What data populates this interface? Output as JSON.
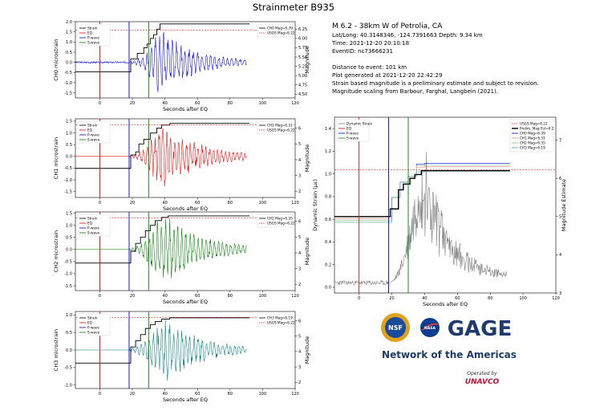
{
  "figure": {
    "title": "Strainmeter B935"
  },
  "info": {
    "line1": "M 6.2 - 38km W of Petrolia, CA",
    "line2": "Lat/Long: 40.3148346, -124.7391663  Depth: 9.34 km",
    "line3": "Time: 2021-12-20 20:10:18",
    "line4": "EventID: nc73666231",
    "line5": "Distance to event: 101 km",
    "line6": "Plot generated at 2021-12-20 22:42:29",
    "line7": "Strain based magnitude is a preliminary estimate and subject to revision.",
    "line8": "Magnitude scaling from Barbour, Farghal, Langbein (2021)."
  },
  "logos": {
    "nsf": "NSF",
    "nasa": "NASA",
    "gage": "GAGE",
    "network": "Network of the Americas",
    "operated": "Operated by",
    "unavco": "UNAVCO"
  },
  "colors": {
    "strain": "#000000",
    "eq": "#ff0000",
    "pwave": "#0000cc",
    "swave": "#008000",
    "usgs": "#d62728",
    "ch0": "#0000ff",
    "ch1": "#ff0000",
    "ch2": "#008000",
    "ch3": "#008080",
    "dynamic": "#808080"
  },
  "chart_data": [
    {
      "id": "ch0",
      "type": "line",
      "xlabel": "Seconds after EQ",
      "ylabel": "CH0 microstrain",
      "y2label": "Magnitude",
      "xlim": [
        -15,
        120
      ],
      "ylim": [
        -1.75,
        2.0
      ],
      "y2lim": [
        4.4,
        6.45
      ],
      "xticks": [
        0,
        20,
        40,
        60,
        80,
        100,
        120
      ],
      "yticks": [
        "2.0",
        "1.5",
        "1.0",
        "0.5",
        "0.0",
        "-0.5",
        "-1.0",
        "-1.5"
      ],
      "y2ticks": [
        "6.25",
        "6.00",
        "5.75",
        "5.50",
        "5.25",
        "5.00",
        "4.75",
        "4.50"
      ],
      "legend_left": [
        "Strain",
        "EQ",
        "P-wave",
        "S-wave"
      ],
      "legend_right": [
        "CH0 Mag=6.39",
        "USGS Mag=6.22"
      ],
      "eq_time": 0,
      "p_time": 18,
      "s_time": 30,
      "usgs_mag": 6.22,
      "final_mag": 6.39,
      "mag_steps": [
        [
          -15,
          5.1
        ],
        [
          18,
          5.1
        ],
        [
          19,
          5.45
        ],
        [
          23,
          5.6
        ],
        [
          27,
          5.75
        ],
        [
          29,
          5.85
        ],
        [
          31,
          6.0
        ],
        [
          33,
          6.1
        ],
        [
          35,
          6.25
        ],
        [
          37,
          6.39
        ],
        [
          92,
          6.39
        ]
      ],
      "signal": {
        "pre_amp": 0.04,
        "max_amp": 1.65,
        "peak": 36,
        "period": 2.6,
        "decay": 22,
        "seed": 3
      }
    },
    {
      "id": "ch1",
      "type": "line",
      "xlabel": "Seconds after EQ",
      "ylabel": "CH1 microstrain",
      "y2label": "Magnitude",
      "xlim": [
        -15,
        120
      ],
      "ylim": [
        -1.75,
        1.6
      ],
      "y2lim": [
        1.6,
        6.6
      ],
      "xticks": [
        0,
        20,
        40,
        60,
        80,
        100,
        120
      ],
      "yticks": [
        "1.5",
        "1.0",
        "0.5",
        "0.0",
        "-0.5",
        "-1.0",
        "-1.5"
      ],
      "y2ticks": [
        "6",
        "5",
        "4",
        "3",
        "2"
      ],
      "legend_left": [
        "Strain",
        "EQ",
        "P-wave",
        "S-wave"
      ],
      "legend_right": [
        "CH1 Mag=6.31",
        "USGS Mag=6.22"
      ],
      "eq_time": 0,
      "p_time": 18,
      "s_time": 30,
      "usgs_mag": 6.22,
      "final_mag": 6.31,
      "mag_steps": [
        [
          -15,
          3.45
        ],
        [
          18,
          3.45
        ],
        [
          19,
          4.3
        ],
        [
          22,
          4.5
        ],
        [
          24,
          5.0
        ],
        [
          27,
          5.3
        ],
        [
          31,
          5.7
        ],
        [
          35,
          6.0
        ],
        [
          38,
          6.2
        ],
        [
          43,
          6.31
        ],
        [
          92,
          6.31
        ]
      ],
      "signal": {
        "pre_amp": 0.0,
        "max_amp": 1.45,
        "peak": 37,
        "period": 2.4,
        "decay": 24,
        "seed": 7
      }
    },
    {
      "id": "ch2",
      "type": "line",
      "xlabel": "Seconds after EQ",
      "ylabel": "CH2 microstrain",
      "y2label": "Magnitude",
      "xlim": [
        -15,
        120
      ],
      "ylim": [
        -1.7,
        1.55
      ],
      "y2lim": [
        1.6,
        6.6
      ],
      "xticks": [
        0,
        20,
        40,
        60,
        80,
        100,
        120
      ],
      "yticks": [
        "1.5",
        "1.0",
        "0.5",
        "0.0",
        "-0.5",
        "-1.0",
        "-1.5"
      ],
      "y2ticks": [
        "6",
        "5",
        "4",
        "3",
        "2"
      ],
      "legend_left": [
        "Strain",
        "EQ",
        "P-wave",
        "S-wave"
      ],
      "legend_right": [
        "CH2 Mag=6.35",
        "USGS Mag=6.22"
      ],
      "eq_time": 0,
      "p_time": 18,
      "s_time": 30,
      "usgs_mag": 6.22,
      "final_mag": 6.35,
      "mag_steps": [
        [
          -15,
          3.35
        ],
        [
          18,
          3.35
        ],
        [
          19,
          4.1
        ],
        [
          22,
          4.6
        ],
        [
          25,
          5.0
        ],
        [
          28,
          5.4
        ],
        [
          31,
          5.75
        ],
        [
          34,
          6.05
        ],
        [
          38,
          6.25
        ],
        [
          42,
          6.35
        ],
        [
          92,
          6.35
        ]
      ],
      "signal": {
        "pre_amp": 0.0,
        "max_amp": 1.5,
        "peak": 37,
        "period": 2.5,
        "decay": 25,
        "seed": 11
      }
    },
    {
      "id": "ch3",
      "type": "line",
      "xlabel": "Seconds after EQ",
      "ylabel": "CH3 microstrain",
      "y2label": "Magnitude",
      "xlim": [
        -15,
        120
      ],
      "ylim": [
        -1.1,
        1.1
      ],
      "y2lim": [
        1.6,
        6.6
      ],
      "xticks": [
        0,
        20,
        40,
        60,
        80,
        100,
        120
      ],
      "yticks": [
        "1.0",
        "0.5",
        "0.0",
        "-0.5",
        "-1.0"
      ],
      "y2ticks": [
        "6",
        "5",
        "4",
        "3",
        "2"
      ],
      "legend_left": [
        "Strain",
        "EQ",
        "P-wave",
        "S-wave"
      ],
      "legend_right": [
        "CH3 Mag=6.19",
        "USGS Mag=6.22"
      ],
      "eq_time": 0,
      "p_time": 18,
      "s_time": 30,
      "usgs_mag": 6.22,
      "final_mag": 6.19,
      "mag_steps": [
        [
          -15,
          3.25
        ],
        [
          18,
          3.25
        ],
        [
          19,
          4.3
        ],
        [
          22,
          4.7
        ],
        [
          25,
          5.1
        ],
        [
          28,
          5.5
        ],
        [
          31,
          5.75
        ],
        [
          34,
          5.95
        ],
        [
          38,
          6.1
        ],
        [
          43,
          6.19
        ],
        [
          92,
          6.19
        ]
      ],
      "signal": {
        "pre_amp": 0.0,
        "max_amp": 0.95,
        "peak": 38,
        "period": 2.5,
        "decay": 23,
        "seed": 17
      }
    },
    {
      "id": "dynamic",
      "type": "line",
      "xlabel": "Seconds after EQ",
      "ylabel": "Dynamic Strain (µε)",
      "y2label": "Magnitude Estimate",
      "xlim": [
        -15,
        120
      ],
      "ylim": [
        -0.05,
        1.5
      ],
      "y2lim": [
        3.0,
        7.6
      ],
      "xticks": [
        0,
        20,
        40,
        60,
        80,
        100,
        120
      ],
      "yticks": [
        "1.4",
        "1.2",
        "1.0",
        "0.8",
        "0.6",
        "0.4",
        "0.2",
        "0.0"
      ],
      "y2ticks": [
        "7",
        "6",
        "5",
        "4",
        "3"
      ],
      "legend_left": [
        "Dynamic Strain",
        "EQ",
        "P-wave",
        "S-wave"
      ],
      "legend_right": [
        "USGS Mag=6.22",
        "Prelim. Mag Est=6.2",
        "CH0 Mag=6.39",
        "CH1 Mag=6.31",
        "CH2 Mag=6.35",
        "CH3 Mag=6.19"
      ],
      "eq_time": 0,
      "p_time": 18,
      "s_time": 30,
      "usgs_mag": 6.22,
      "prelim_mag": 6.2,
      "prelim_steps": [
        [
          -15,
          5.0
        ],
        [
          18,
          5.0
        ],
        [
          19,
          5.2
        ],
        [
          24,
          5.7
        ],
        [
          27,
          5.85
        ],
        [
          31,
          6.0
        ],
        [
          34,
          6.1
        ],
        [
          38,
          6.2
        ],
        [
          92,
          6.2
        ]
      ],
      "channel_mags": [
        6.39,
        6.31,
        6.35,
        6.19
      ],
      "dynamic": {
        "peak_x": 38,
        "peak_val": 1.4,
        "seed": 23
      }
    }
  ]
}
